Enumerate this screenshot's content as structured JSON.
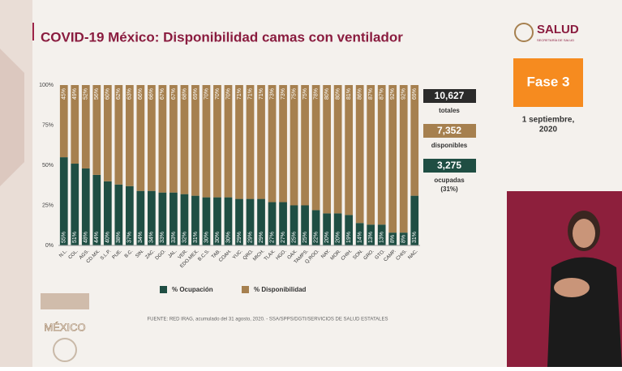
{
  "chart_data": {
    "type": "stacked-bar",
    "title": "COVID-19 México: Disponibilidad camas con ventilador",
    "categories": [
      "N.L.",
      "COL.",
      "AGS.",
      "CD.MX.",
      "S.L.P.",
      "PUE.",
      "B.C.",
      "SIN.",
      "ZAC.",
      "DGO.",
      "JAL.",
      "VER.",
      "EDO.MEX.",
      "B.C.S.",
      "TAB.",
      "COAH.",
      "YUC.",
      "QRO.",
      "MICH.",
      "TLAX.",
      "HGO.",
      "OAX.",
      "TAMPS.",
      "Q.ROO.",
      "NAY.",
      "MOR.",
      "CHIH.",
      "SON.",
      "GRO.",
      "GTO.",
      "CAMP.",
      "CHIS.",
      "NAC."
    ],
    "series": [
      {
        "name": "% Ocupación",
        "color": "#1f4e43",
        "values": [
          55,
          51,
          48,
          44,
          40,
          38,
          37,
          34,
          34,
          33,
          33,
          32,
          31,
          30,
          30,
          30,
          29,
          29,
          29,
          27,
          27,
          25,
          25,
          22,
          20,
          20,
          19,
          14,
          13,
          13,
          8,
          8,
          31
        ],
        "value_labels": [
          "55%",
          "51%",
          "48%",
          "44%",
          "40%",
          "38%",
          "37%",
          "34%",
          "34%",
          "33%",
          "33%",
          "32%",
          "31%",
          "30%",
          "30%",
          "30%",
          "29%",
          "29%",
          "29%",
          "27%",
          "27%",
          "25%",
          "25%",
          "22%",
          "20%",
          "20%",
          "19%",
          "14%",
          "13%",
          "13%",
          "8%",
          "8%",
          "31%"
        ]
      },
      {
        "name": "% Disponibilidad",
        "color": "#a6804f",
        "values": [
          45,
          49,
          52,
          56,
          60,
          62,
          63,
          66,
          66,
          67,
          67,
          68,
          69,
          70,
          70,
          70,
          71,
          71,
          71,
          73,
          73,
          75,
          75,
          78,
          80,
          80,
          81,
          86,
          87,
          87,
          92,
          92,
          69
        ],
        "value_labels": [
          "45%",
          "49%",
          "52%",
          "56%",
          "60%",
          "62%",
          "63%",
          "66%",
          "66%",
          "67%",
          "67%",
          "68%",
          "69%",
          "70%",
          "70%",
          "70%",
          "71%",
          "71%",
          "71%",
          "73%",
          "73%",
          "75%",
          "75%",
          "78%",
          "80%",
          "80%",
          "81%",
          "86%",
          "87%",
          "87%",
          "92%",
          "92%",
          "69%"
        ]
      }
    ],
    "ylim": [
      0,
      100
    ],
    "yticks": [
      {
        "value": 0,
        "label": "0%"
      },
      {
        "value": 25,
        "label": "25%"
      },
      {
        "value": 50,
        "label": "50%"
      },
      {
        "value": 75,
        "label": "75%"
      },
      {
        "value": 100,
        "label": "100%"
      }
    ],
    "grid": false,
    "legend": "bottom",
    "source": "FUENTE: RED IRAG, acumulado del 31 agosto, 2020. - SSA/SPPS/DGTI/SERVICIOS DE SALUD ESTATALES"
  },
  "stats": {
    "total": "10,627",
    "total_label": "totales",
    "available": "7,352",
    "available_label": "disponibles",
    "occupied": "3,275",
    "occupied_label": "ocupadas",
    "occupied_pct": "(31%)"
  },
  "header": {
    "logo": "SALUD",
    "logo_sub": "SECRETARÍA DE SALUD",
    "phase": "Fase 3",
    "date_line1": "1 septiembre,",
    "date_line2": "2020"
  },
  "footer": {
    "country": "MÉXICO"
  }
}
